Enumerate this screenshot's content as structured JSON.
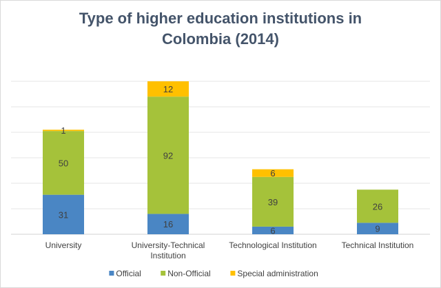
{
  "chart_data": {
    "type": "bar",
    "stacked": true,
    "title_lines": [
      "Type of higher education institutions in",
      "Colombia (2014)"
    ],
    "categories": [
      [
        "University"
      ],
      [
        "University-Technical",
        "Institution"
      ],
      [
        "Technological Institution"
      ],
      [
        "Technical Institution"
      ]
    ],
    "series": [
      {
        "name": "Official",
        "color": "#4a86c4",
        "values": [
          31,
          16,
          6,
          9
        ]
      },
      {
        "name": "Non-Official",
        "color": "#a5c23a",
        "values": [
          50,
          92,
          39,
          26
        ]
      },
      {
        "name": "Special administration",
        "color": "#ffc000",
        "values": [
          1,
          12,
          6,
          0
        ]
      }
    ],
    "ylim": [
      0,
      120
    ],
    "ytick_step": 20,
    "y_tick_labels_shown": false,
    "grid": true,
    "legend": "bottom",
    "data_labels": true
  }
}
